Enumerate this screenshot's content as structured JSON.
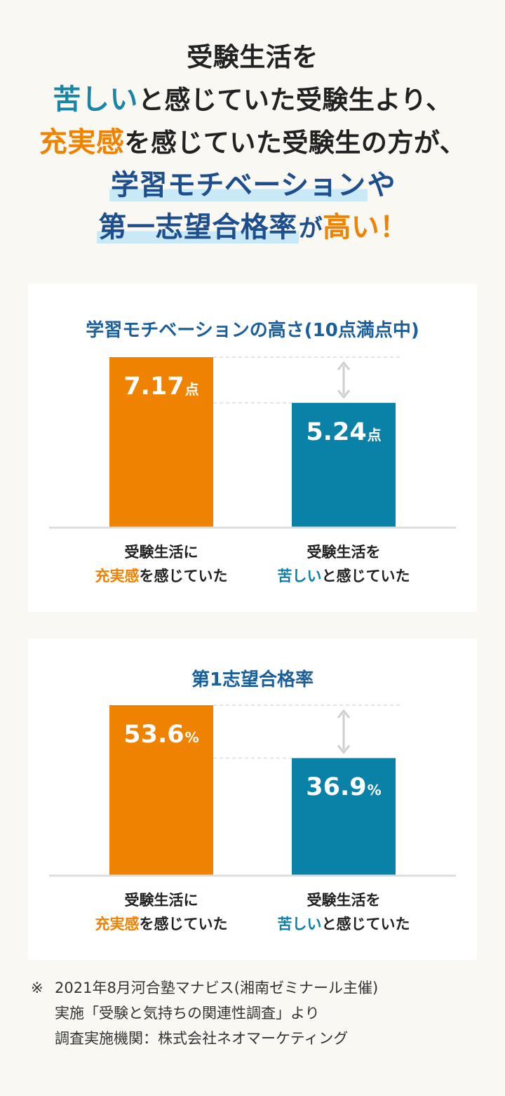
{
  "headline": {
    "line1": "受験生活を",
    "line2_em": "苦しい",
    "line2_rest": "と感じていた受験生より、",
    "line3_em": "充実感",
    "line3_rest": "を感じていた受験生の方が、",
    "line4_marked": "学習モチベーション",
    "line4_rest": "や",
    "line5_marked": "第一志望合格率",
    "line5_mid": "が",
    "line5_em": "高い！"
  },
  "colors": {
    "orange": "#ef8200",
    "teal": "#0a82a8",
    "navy": "#1a5f9c"
  },
  "chart_data": [
    {
      "type": "bar",
      "title": "学習モチベーションの高さ(10点満点中)",
      "categories": [
        "受験生活に充実感を感じていた",
        "受験生活を苦しいと感じていた"
      ],
      "values": [
        7.17,
        5.24
      ],
      "value_labels": [
        "7.17",
        "5.24"
      ],
      "unit": "点",
      "ylim": [
        0,
        7.17
      ],
      "labels": [
        {
          "line1": "受験生活に",
          "em": "充実感",
          "rest": "を感じていた"
        },
        {
          "line1": "受験生活を",
          "em": "苦しい",
          "rest": "と感じていた"
        }
      ]
    },
    {
      "type": "bar",
      "title": "第1志望合格率",
      "categories": [
        "受験生活に充実感を感じていた",
        "受験生活を苦しいと感じていた"
      ],
      "values": [
        53.6,
        36.9
      ],
      "value_labels": [
        "53.6",
        "36.9"
      ],
      "unit": "%",
      "ylim": [
        0,
        53.6
      ],
      "labels": [
        {
          "line1": "受験生活に",
          "em": "充実感",
          "rest": "を感じていた"
        },
        {
          "line1": "受験生活を",
          "em": "苦しい",
          "rest": "と感じていた"
        }
      ]
    }
  ],
  "footnote": {
    "mark": "※",
    "lines": [
      "2021年8月河合塾マナビス(湘南ゼミナール主催)",
      "実施「受験と気持ちの関連性調査」より",
      "調査実施機関：株式会社ネオマーケティング"
    ]
  }
}
